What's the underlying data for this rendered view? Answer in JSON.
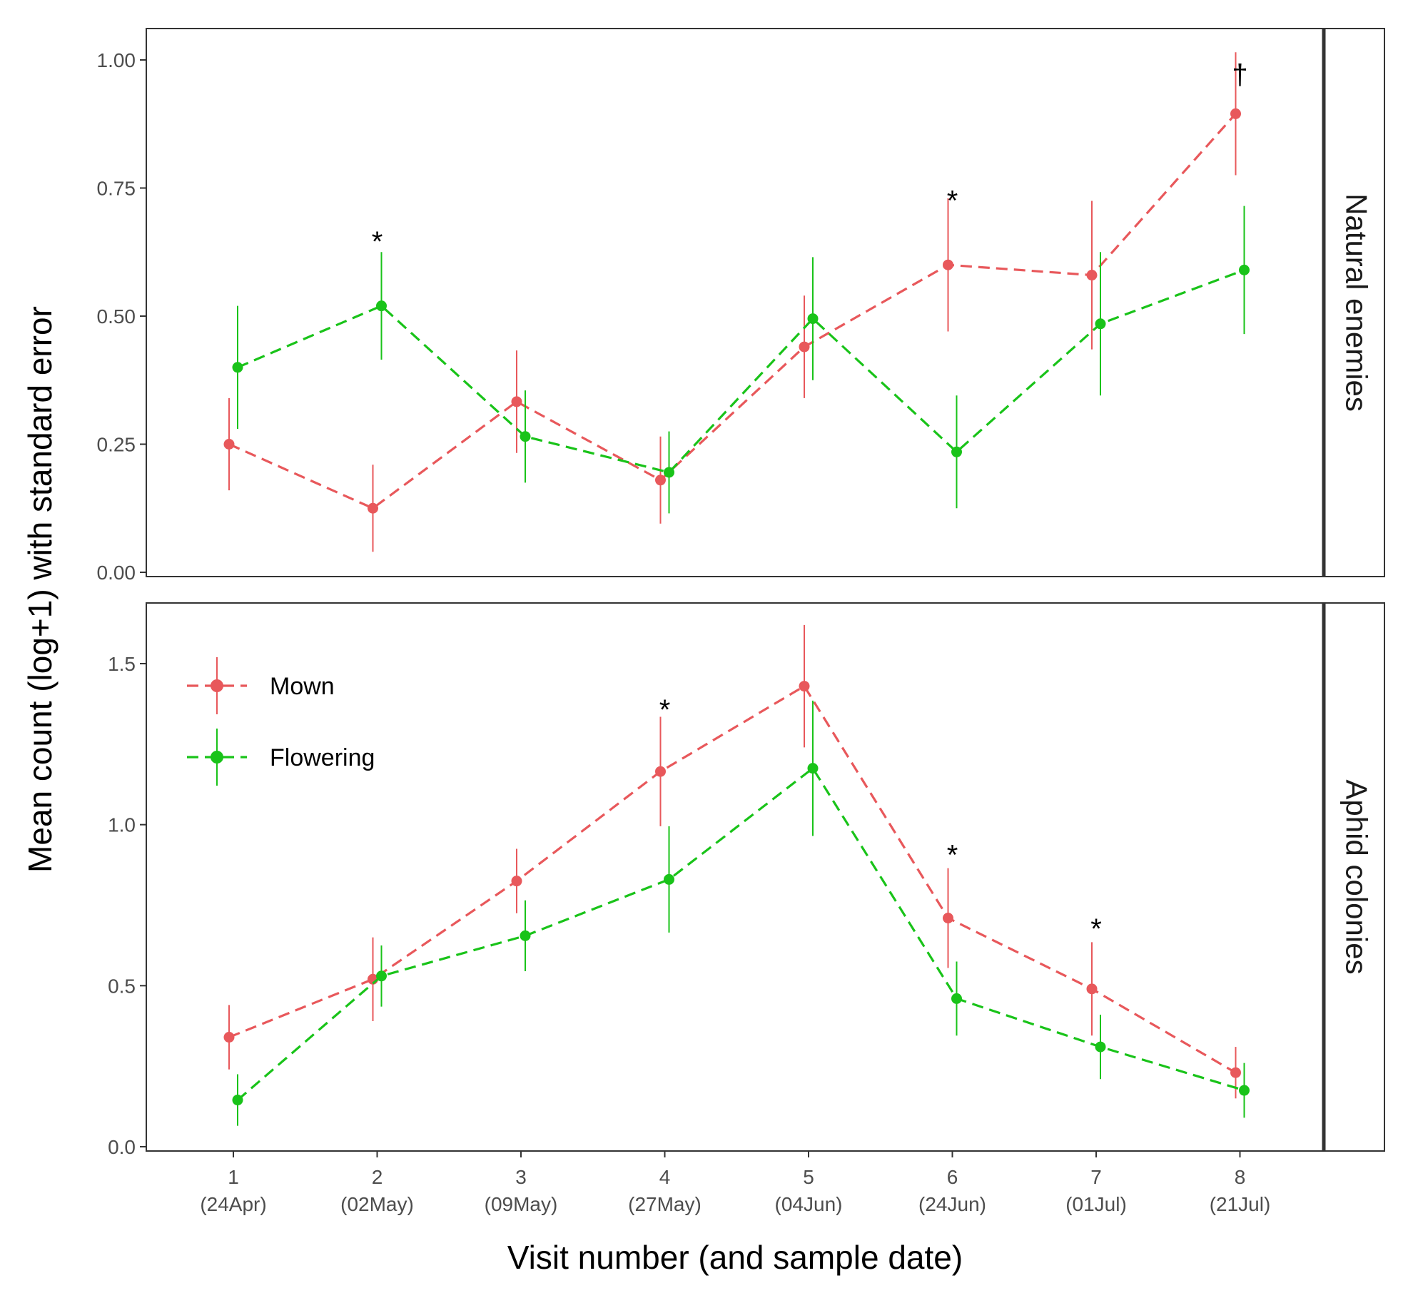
{
  "chart_data": {
    "type": "line",
    "ylabel": "Mean count (log+1) with standard error",
    "xlabel": "Visit number (and sample date)",
    "x": [
      1,
      2,
      3,
      4,
      5,
      6,
      7,
      8
    ],
    "x_tick_numbers": [
      "1",
      "2",
      "3",
      "4",
      "5",
      "6",
      "7",
      "8"
    ],
    "x_tick_dates": [
      "(24Apr)",
      "(02May)",
      "(09May)",
      "(27May)",
      "(04Jun)",
      "(24Jun)",
      "(01Jul)",
      "(21Jul)"
    ],
    "legend": {
      "placement": "top-left of lower panel",
      "entries": [
        "Mown",
        "Flowering"
      ]
    },
    "colors": {
      "Mown": "#e8585b",
      "Flowering": "#19c319"
    },
    "panels": [
      {
        "strip": "Natural enemies",
        "ylim": [
          0,
          1.05
        ],
        "yticks": [
          0,
          0.25,
          0.5,
          0.75,
          1.0
        ],
        "ytick_labels": [
          "0.00",
          "0.25",
          "0.50",
          "0.75",
          "1.00"
        ],
        "series": [
          {
            "name": "Mown",
            "values": [
              0.25,
              0.125,
              0.333,
              0.18,
              0.44,
              0.6,
              0.58,
              0.895
            ],
            "se": [
              0.09,
              0.085,
              0.1,
              0.085,
              0.1,
              0.13,
              0.145,
              0.12
            ]
          },
          {
            "name": "Flowering",
            "values": [
              0.4,
              0.52,
              0.265,
              0.195,
              0.495,
              0.235,
              0.485,
              0.59
            ],
            "se": [
              0.12,
              0.105,
              0.09,
              0.08,
              0.12,
              0.11,
              0.14,
              0.125
            ]
          }
        ],
        "annotations": [
          {
            "x": 2,
            "text": "*",
            "y": 0.66
          },
          {
            "x": 6,
            "text": "*",
            "y": 0.74
          },
          {
            "x": 8,
            "text": "†",
            "y": 1.0
          }
        ]
      },
      {
        "strip": "Aphid colonies",
        "ylim": [
          0,
          1.65
        ],
        "yticks": [
          0,
          0.5,
          1.0,
          1.5
        ],
        "ytick_labels": [
          "0.0",
          "0.5",
          "1.0",
          "1.5"
        ],
        "series": [
          {
            "name": "Mown",
            "values": [
              0.34,
              0.52,
              0.825,
              1.165,
              1.43,
              0.71,
              0.49,
              0.23
            ],
            "se": [
              0.1,
              0.13,
              0.1,
              0.17,
              0.19,
              0.155,
              0.145,
              0.08
            ]
          },
          {
            "name": "Flowering",
            "values": [
              0.145,
              0.53,
              0.655,
              0.83,
              1.175,
              0.46,
              0.31,
              0.175
            ],
            "se": [
              0.08,
              0.095,
              0.11,
              0.165,
              0.21,
              0.115,
              0.1,
              0.085
            ]
          }
        ],
        "annotations": [
          {
            "x": 4,
            "text": "*",
            "y": 1.38
          },
          {
            "x": 6,
            "text": "*",
            "y": 0.93
          },
          {
            "x": 7,
            "text": "*",
            "y": 0.7
          }
        ]
      }
    ]
  }
}
